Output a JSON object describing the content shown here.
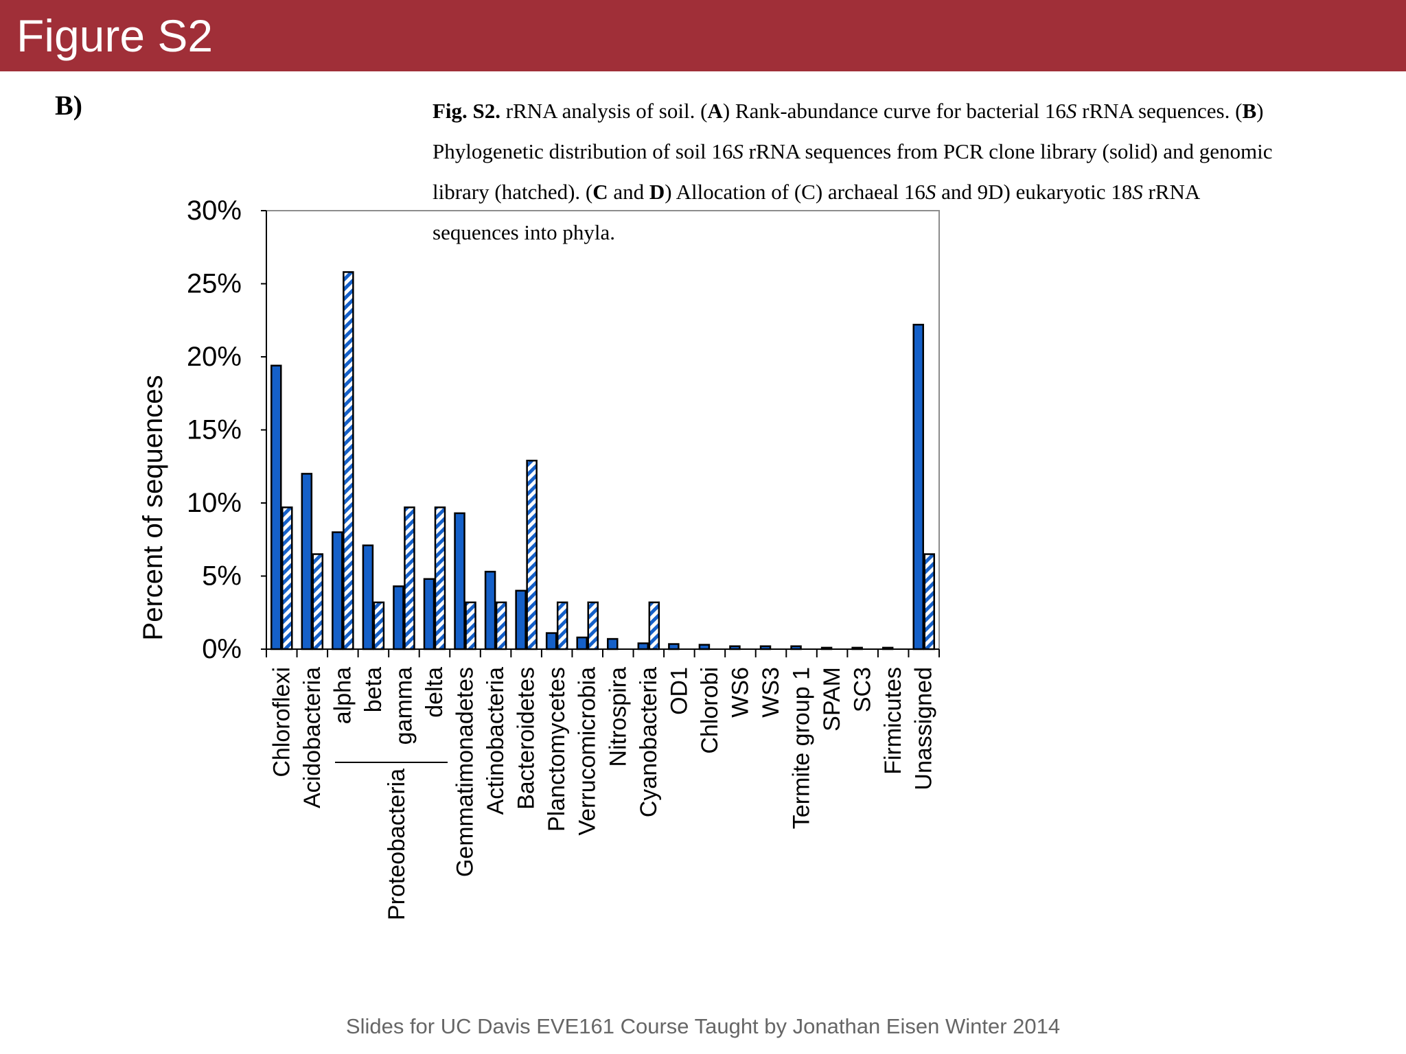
{
  "slide": {
    "title": "Figure S2",
    "panel_label": "B)",
    "footer": "Slides for UC Davis EVE161 Course Taught by Jonathan Eisen Winter 2014"
  },
  "caption": {
    "fig": "Fig. S2.",
    "text_1": " rRNA analysis of soil.  (",
    "A": "A",
    "text_2": ") Rank-abundance curve for bacterial 16",
    "S1": "S",
    "text_3": " rRNA sequences.  (",
    "B": "B",
    "text_4": ") Phylogenetic distribution of soil 16",
    "S2": "S",
    "text_5": " rRNA sequences from PCR clone library (solid) and genomic library (hatched).  (",
    "CD": "C",
    "and": " and ",
    "D": "D",
    "text_6": ") Allocation of (C) archaeal 16",
    "S3": "S",
    "text_7": " and 9D) eukaryotic 18",
    "S4": "S",
    "text_8": " rRNA sequences into phyla."
  },
  "colors": {
    "header": "#a02f38",
    "solid": "#1560c8",
    "hatch": "#1560c8"
  },
  "chart_data": {
    "type": "bar",
    "ylabel": "Percent of sequences",
    "ylim": [
      0,
      30
    ],
    "yticks": [
      "0%",
      "5%",
      "10%",
      "15%",
      "20%",
      "25%",
      "30%"
    ],
    "group_label": "Proteobacteria",
    "categories": [
      "Chloroflexi",
      "Acidobacteria",
      "alpha",
      "beta",
      "gamma",
      "delta",
      "Gemmatimonadetes",
      "Actinobacteria",
      "Bacteroidetes",
      "Planctomycetes",
      "Verrucomicrobia",
      "Nitrospira",
      "Cyanobacteria",
      "OD1",
      "Chlorobi",
      "WS6",
      "WS3",
      "Termite group 1",
      "SPAM",
      "SC3",
      "Firmicutes",
      "Unassigned"
    ],
    "series": [
      {
        "name": "PCR clone library (solid)",
        "style": "solid",
        "values": [
          19.4,
          12.0,
          8.0,
          7.1,
          4.3,
          4.8,
          9.3,
          5.3,
          4.0,
          1.1,
          0.8,
          0.7,
          0.4,
          0.35,
          0.3,
          0.2,
          0.2,
          0.2,
          0.1,
          0.1,
          0.1,
          22.2
        ]
      },
      {
        "name": "genomic library (hatched)",
        "style": "hatched",
        "values": [
          9.7,
          6.5,
          25.8,
          3.2,
          9.7,
          9.7,
          3.2,
          3.2,
          12.9,
          3.2,
          3.2,
          0,
          3.2,
          0,
          0,
          0,
          0,
          0,
          0,
          0,
          0,
          6.5
        ]
      }
    ]
  }
}
